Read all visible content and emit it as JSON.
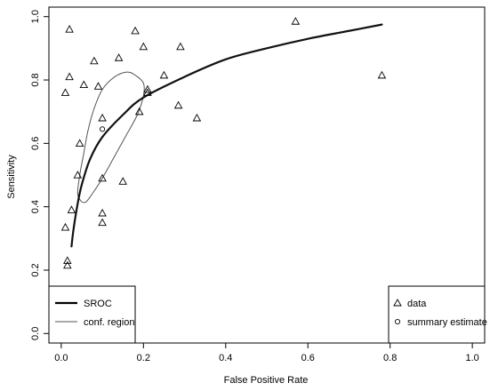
{
  "chart_data": {
    "type": "scatter",
    "xlabel": "False Positive Rate",
    "ylabel": "Sensitivity",
    "xlim": [
      -0.03,
      1.03
    ],
    "ylim": [
      -0.03,
      1.03
    ],
    "x_ticks": [
      "0.0",
      "0.2",
      "0.4",
      "0.6",
      "0.8",
      "1.0"
    ],
    "y_ticks": [
      "0.0",
      "0.2",
      "0.4",
      "0.6",
      "0.8",
      "1.0"
    ],
    "grid": false,
    "legend_left": {
      "placement": "bottom-left",
      "entries": [
        {
          "label": "SROC",
          "style": "thick-line"
        },
        {
          "label": "conf. region",
          "style": "thin-line"
        }
      ]
    },
    "legend_right": {
      "placement": "bottom-right",
      "entries": [
        {
          "label": "data",
          "marker": "triangle"
        },
        {
          "label": "summary estimate",
          "marker": "circle"
        }
      ]
    },
    "series": [
      {
        "name": "data",
        "marker": "triangle",
        "points": [
          [
            0.02,
            0.96
          ],
          [
            0.02,
            0.81
          ],
          [
            0.01,
            0.76
          ],
          [
            0.055,
            0.785
          ],
          [
            0.09,
            0.78
          ],
          [
            0.08,
            0.86
          ],
          [
            0.14,
            0.87
          ],
          [
            0.18,
            0.955
          ],
          [
            0.2,
            0.905
          ],
          [
            0.29,
            0.905
          ],
          [
            0.57,
            0.985
          ],
          [
            0.78,
            0.815
          ],
          [
            0.25,
            0.815
          ],
          [
            0.21,
            0.77
          ],
          [
            0.21,
            0.76
          ],
          [
            0.1,
            0.68
          ],
          [
            0.19,
            0.7
          ],
          [
            0.285,
            0.72
          ],
          [
            0.33,
            0.68
          ],
          [
            0.045,
            0.6
          ],
          [
            0.04,
            0.5
          ],
          [
            0.1,
            0.49
          ],
          [
            0.15,
            0.48
          ],
          [
            0.025,
            0.39
          ],
          [
            0.1,
            0.38
          ],
          [
            0.1,
            0.35
          ],
          [
            0.01,
            0.335
          ],
          [
            0.015,
            0.23
          ],
          [
            0.015,
            0.215
          ]
        ]
      },
      {
        "name": "summary estimate",
        "marker": "circle",
        "points": [
          [
            0.1,
            0.645
          ]
        ]
      },
      {
        "name": "SROC",
        "style": "thick-line",
        "points": [
          [
            0.025,
            0.275
          ],
          [
            0.03,
            0.33
          ],
          [
            0.04,
            0.41
          ],
          [
            0.05,
            0.47
          ],
          [
            0.07,
            0.55
          ],
          [
            0.1,
            0.62
          ],
          [
            0.15,
            0.69
          ],
          [
            0.2,
            0.745
          ],
          [
            0.3,
            0.81
          ],
          [
            0.4,
            0.865
          ],
          [
            0.5,
            0.9
          ],
          [
            0.6,
            0.93
          ],
          [
            0.7,
            0.955
          ],
          [
            0.78,
            0.975
          ]
        ]
      },
      {
        "name": "conf. region",
        "style": "thin-line",
        "points": [
          [
            0.05,
            0.415
          ],
          [
            0.04,
            0.44
          ],
          [
            0.045,
            0.5
          ],
          [
            0.055,
            0.57
          ],
          [
            0.065,
            0.64
          ],
          [
            0.08,
            0.71
          ],
          [
            0.1,
            0.77
          ],
          [
            0.13,
            0.81
          ],
          [
            0.16,
            0.825
          ],
          [
            0.18,
            0.815
          ],
          [
            0.2,
            0.79
          ],
          [
            0.2,
            0.75
          ],
          [
            0.185,
            0.69
          ],
          [
            0.16,
            0.63
          ],
          [
            0.13,
            0.56
          ],
          [
            0.1,
            0.49
          ],
          [
            0.075,
            0.44
          ],
          [
            0.06,
            0.415
          ],
          [
            0.05,
            0.415
          ]
        ]
      }
    ]
  }
}
